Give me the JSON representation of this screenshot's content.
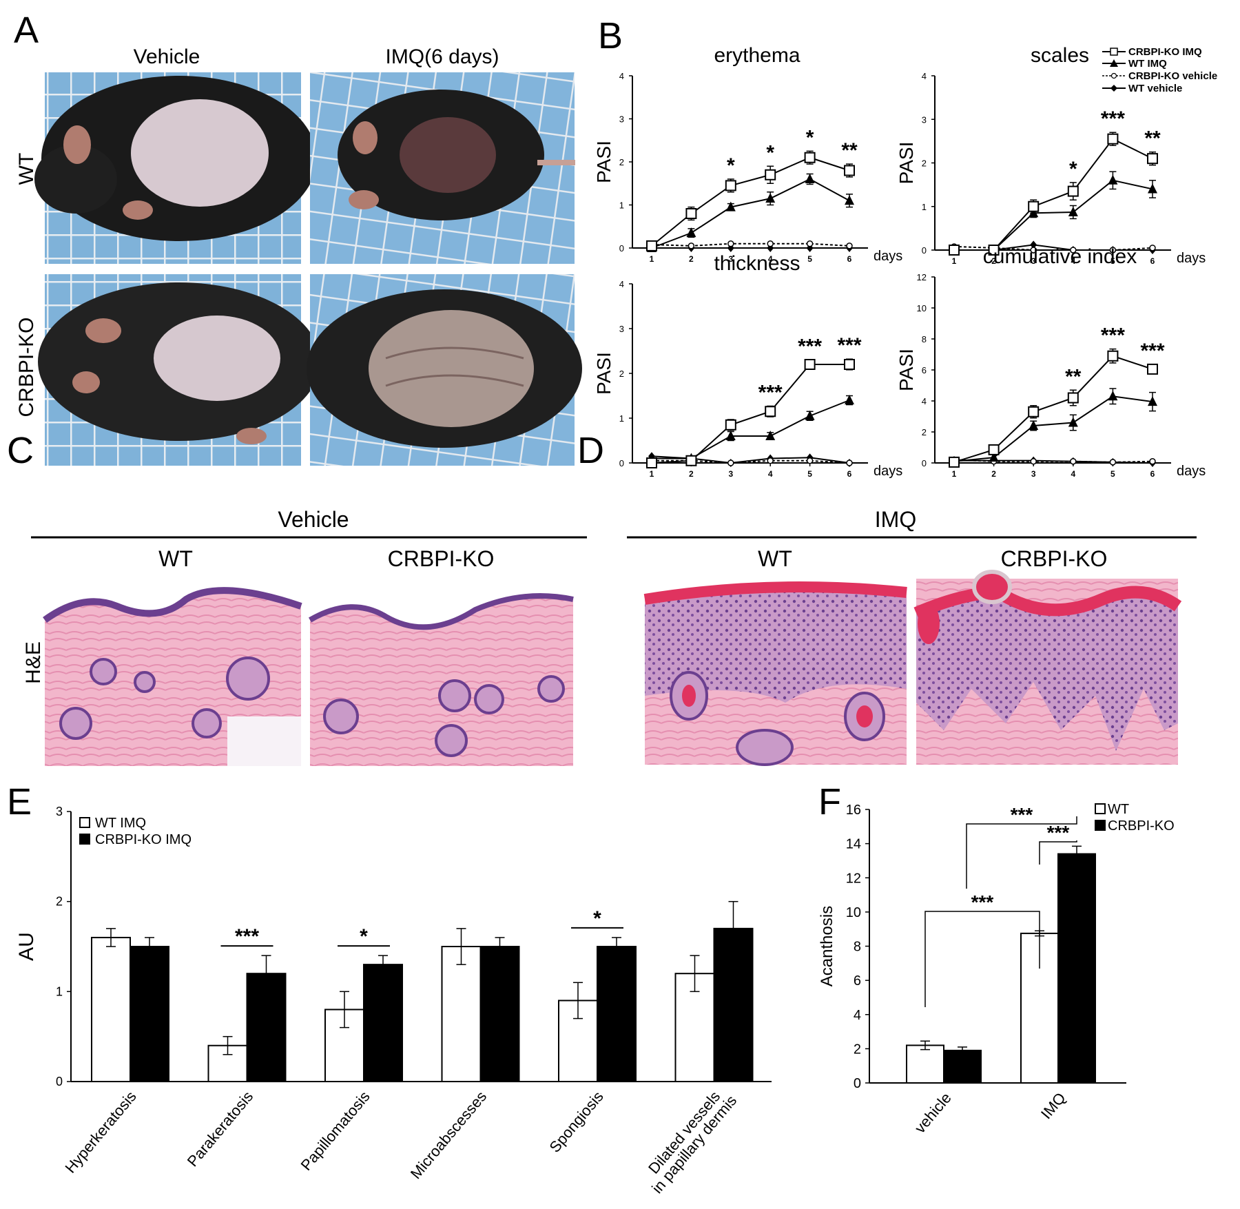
{
  "panels": {
    "A": "A",
    "B": "B",
    "C": "C",
    "D": "D",
    "E": "E",
    "F": "F"
  },
  "panel_a": {
    "col_labels": [
      "Vehicle",
      "IMQ(6 days)"
    ],
    "row_labels": [
      "WT",
      "CRBPI-KO"
    ]
  },
  "panel_b": {
    "legend": [
      "CRBPI-KO IMQ",
      "WT IMQ",
      "CRBPI-KO vehicle",
      "WT vehicle"
    ],
    "x_unit": "days",
    "ylabel": "PASI"
  },
  "panel_c": {
    "title": "Vehicle",
    "col_labels": [
      "WT",
      "CRBPI-KO"
    ],
    "row_label": "H&E"
  },
  "panel_d": {
    "title": "IMQ",
    "col_labels": [
      "WT",
      "CRBPI-KO"
    ]
  },
  "colors": {
    "skin_pink": "#e98fae",
    "stratum_red": "#e0335f",
    "nuclei_purple": "#6b3f8f",
    "cage_blue": "#7fb2d9",
    "fur_black": "#1a1a1a"
  },
  "chart_data": [
    {
      "id": "B-erythema",
      "type": "line",
      "title": "erythema",
      "ylabel": "PASI",
      "xlabel": "days",
      "ylim": [
        0,
        4
      ],
      "yticks": [
        0,
        1,
        2,
        3,
        4
      ],
      "x": [
        1,
        2,
        3,
        4,
        5,
        6
      ],
      "series": [
        {
          "name": "CRBPI-KO IMQ",
          "values": [
            0.05,
            0.8,
            1.45,
            1.7,
            2.1,
            1.8
          ],
          "err": [
            0.05,
            0.15,
            0.15,
            0.2,
            0.15,
            0.15
          ]
        },
        {
          "name": "WT IMQ",
          "values": [
            0.0,
            0.35,
            0.95,
            1.15,
            1.6,
            1.1
          ],
          "err": [
            0.0,
            0.1,
            0.08,
            0.15,
            0.12,
            0.15
          ]
        },
        {
          "name": "CRBPI-KO vehicle",
          "values": [
            0.08,
            0.05,
            0.1,
            0.1,
            0.1,
            0.05
          ]
        },
        {
          "name": "WT vehicle",
          "values": [
            0.0,
            0.0,
            0.0,
            0.0,
            0.0,
            0.0
          ]
        }
      ],
      "annotations": [
        {
          "x": 3,
          "text": "*"
        },
        {
          "x": 4,
          "text": "*"
        },
        {
          "x": 5,
          "text": "*"
        },
        {
          "x": 6,
          "text": "**"
        }
      ]
    },
    {
      "id": "B-scales",
      "type": "line",
      "title": "scales",
      "ylabel": "PASI",
      "xlabel": "days",
      "ylim": [
        0,
        4
      ],
      "yticks": [
        0,
        1,
        2,
        3,
        4
      ],
      "x": [
        1,
        2,
        3,
        4,
        5,
        6
      ],
      "series": [
        {
          "name": "CRBPI-KO IMQ",
          "values": [
            0.0,
            0.0,
            1.0,
            1.35,
            2.55,
            2.1
          ],
          "err": [
            0.0,
            0.0,
            0.15,
            0.2,
            0.15,
            0.15
          ]
        },
        {
          "name": "WT IMQ",
          "values": [
            0.0,
            0.0,
            0.85,
            0.87,
            1.6,
            1.4
          ],
          "err": [
            0.0,
            0.0,
            0.1,
            0.15,
            0.2,
            0.2
          ]
        },
        {
          "name": "CRBPI-KO vehicle",
          "values": [
            0.08,
            0.05,
            0.0,
            0.0,
            0.0,
            0.05
          ]
        },
        {
          "name": "WT vehicle",
          "values": [
            0.0,
            0.0,
            0.12,
            0.0,
            0.0,
            0.0
          ]
        }
      ],
      "annotations": [
        {
          "x": 4,
          "text": "*"
        },
        {
          "x": 5,
          "text": "***"
        },
        {
          "x": 6,
          "text": "**"
        }
      ]
    },
    {
      "id": "B-thickness",
      "type": "line",
      "title": "thickness",
      "ylabel": "PASI",
      "xlabel": "days",
      "ylim": [
        0,
        4
      ],
      "yticks": [
        0,
        1,
        2,
        3,
        4
      ],
      "x": [
        1,
        2,
        3,
        4,
        5,
        6
      ],
      "series": [
        {
          "name": "CRBPI-KO IMQ",
          "values": [
            0.0,
            0.05,
            0.85,
            1.15,
            2.2,
            2.2
          ],
          "err": [
            0.0,
            0.0,
            0.12,
            0.12,
            0.1,
            0.12
          ]
        },
        {
          "name": "WT IMQ",
          "values": [
            0.1,
            0.1,
            0.6,
            0.6,
            1.05,
            1.4
          ],
          "err": [
            0.0,
            0.0,
            0.1,
            0.08,
            0.1,
            0.1
          ]
        },
        {
          "name": "CRBPI-KO vehicle",
          "values": [
            0.05,
            0.05,
            0.0,
            0.05,
            0.05,
            0.0
          ]
        },
        {
          "name": "WT vehicle",
          "values": [
            0.15,
            0.1,
            0.0,
            0.1,
            0.12,
            0.0
          ]
        }
      ],
      "annotations": [
        {
          "x": 4,
          "text": "***"
        },
        {
          "x": 5,
          "text": "***"
        },
        {
          "x": 6,
          "text": "***"
        }
      ]
    },
    {
      "id": "B-cumulative",
      "type": "line",
      "title": "cumulative index",
      "ylabel": "PASI",
      "xlabel": "days",
      "ylim": [
        0,
        12
      ],
      "yticks": [
        0,
        2,
        4,
        6,
        8,
        10,
        12
      ],
      "x": [
        1,
        2,
        3,
        4,
        5,
        6
      ],
      "series": [
        {
          "name": "CRBPI-KO IMQ",
          "values": [
            0.05,
            0.85,
            3.3,
            4.2,
            6.9,
            6.05
          ],
          "err": [
            0.0,
            0.0,
            0.4,
            0.5,
            0.45,
            0.3
          ]
        },
        {
          "name": "WT IMQ",
          "values": [
            0.1,
            0.35,
            2.4,
            2.6,
            4.3,
            3.95
          ],
          "err": [
            0.0,
            0.0,
            0.3,
            0.5,
            0.5,
            0.6
          ]
        },
        {
          "name": "CRBPI-KO vehicle",
          "values": [
            0.2,
            0.1,
            0.1,
            0.1,
            0.05,
            0.1
          ]
        },
        {
          "name": "WT vehicle",
          "values": [
            0.15,
            0.15,
            0.15,
            0.1,
            0.05,
            0.0
          ]
        }
      ],
      "annotations": [
        {
          "x": 4,
          "text": "**"
        },
        {
          "x": 5,
          "text": "***"
        },
        {
          "x": 6,
          "text": "***"
        }
      ]
    },
    {
      "id": "E",
      "type": "bar",
      "ylabel": "AU",
      "ylim": [
        0,
        3
      ],
      "yticks": [
        0,
        1,
        2,
        3
      ],
      "categories": [
        "Hyperkeratosis",
        "Parakeratosis",
        "Papillomatosis",
        "Microabscesses",
        "Spongiosis",
        "Dilated vessels in papillary dermis"
      ],
      "category_lines": [
        [
          "Hyperkeratosis"
        ],
        [
          "Parakeratosis"
        ],
        [
          "Papillomatosis"
        ],
        [
          "Microabscesses"
        ],
        [
          "Spongiosis"
        ],
        [
          "Dilated vessels",
          "in papillary dermis"
        ]
      ],
      "series": [
        {
          "name": "WT IMQ",
          "values": [
            1.6,
            0.4,
            0.8,
            1.5,
            0.9,
            1.2
          ],
          "err": [
            0.1,
            0.1,
            0.2,
            0.2,
            0.2,
            0.2
          ]
        },
        {
          "name": "CRBPI-KO IMQ",
          "values": [
            1.5,
            1.2,
            1.3,
            1.5,
            1.5,
            1.7
          ],
          "err": [
            0.1,
            0.2,
            0.1,
            0.1,
            0.1,
            0.3
          ]
        }
      ],
      "significance": [
        {
          "category": 1,
          "text": "***"
        },
        {
          "category": 2,
          "text": "*"
        },
        {
          "category": 4,
          "text": "*"
        }
      ]
    },
    {
      "id": "F",
      "type": "bar",
      "ylabel": "Acanthosis",
      "ylim": [
        0,
        16
      ],
      "yticks": [
        0,
        2,
        4,
        6,
        8,
        10,
        12,
        14,
        16
      ],
      "categories": [
        "vehicle",
        "IMQ"
      ],
      "series": [
        {
          "name": "WT",
          "values": [
            2.2,
            8.75
          ],
          "err": [
            0.25,
            0.15
          ]
        },
        {
          "name": "CRBPI-KO",
          "values": [
            1.9,
            13.4
          ],
          "err": [
            0.2,
            0.45
          ]
        }
      ],
      "significance": [
        "***",
        "***",
        "***"
      ]
    }
  ]
}
